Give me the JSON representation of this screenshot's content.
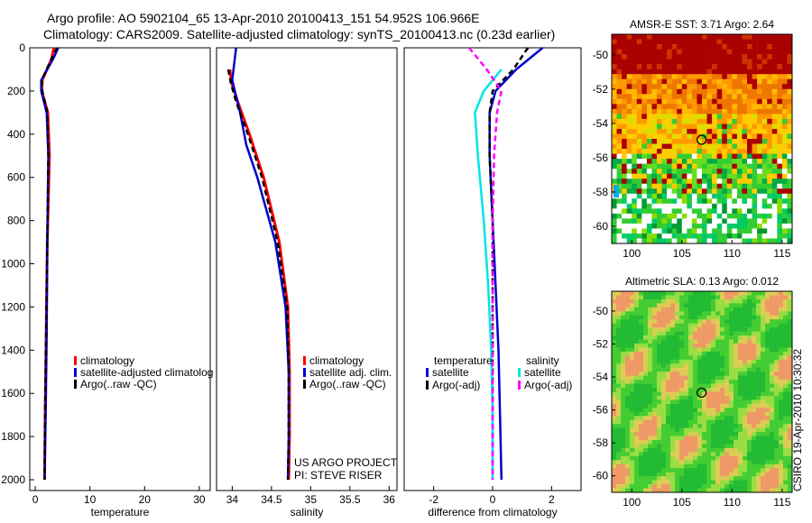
{
  "header": {
    "line1": "Argo profile: AO 5902104_65 13-Apr-2010 20100413_151 54.952S 106.966E",
    "line2": "Climatology: CARS2009. Satellite-adjusted climatology: synTS_20100413.nc (0.23d earlier)"
  },
  "side_note": "CSIRO 19-Apr-2010 10:30:32",
  "colors": {
    "climatology": "#ff0000",
    "satellite": "#0000cc",
    "argo": "#000000",
    "temp_satellite": "#00e5e5",
    "sal_argo": "#ff00ff"
  },
  "chart_data": [
    {
      "type": "line",
      "name": "temperature-profile",
      "xlabel": "temperature",
      "xlim": [
        -1,
        32
      ],
      "xticks": [
        "0",
        "10",
        "20",
        "30"
      ],
      "xtick_values": [
        0,
        10,
        20,
        30
      ],
      "ylim": [
        0,
        2050
      ],
      "yticks": [
        "0",
        "200",
        "400",
        "600",
        "800",
        "1000",
        "1200",
        "1400",
        "1600",
        "1800",
        "2000"
      ],
      "ytick_values": [
        0,
        200,
        400,
        600,
        800,
        1000,
        1200,
        1400,
        1600,
        1800,
        2000
      ],
      "legend": [
        "climatology",
        "satellite-adjusted climatolog",
        "Argo(..raw -QC)"
      ],
      "series": [
        {
          "key": "climatology",
          "x": [
            3.4,
            3.0,
            1.3,
            1.2,
            2.3,
            2.6,
            2.2,
            2.0,
            1.8,
            1.7
          ],
          "y": [
            0,
            50,
            150,
            200,
            300,
            500,
            900,
            1300,
            1700,
            2000
          ]
        },
        {
          "key": "satellite",
          "x": [
            4.2,
            3.3,
            1.1,
            1.1,
            2.1,
            2.4,
            2.2,
            2.1,
            1.9,
            1.7
          ],
          "y": [
            0,
            50,
            150,
            200,
            300,
            500,
            900,
            1300,
            1700,
            2000
          ]
        },
        {
          "key": "argo",
          "x": [
            4.0,
            3.0,
            1.2,
            1.3,
            2.2,
            2.4,
            2.2,
            2.0,
            1.8,
            1.7
          ],
          "y": [
            0,
            50,
            150,
            200,
            300,
            500,
            900,
            1300,
            1700,
            2000
          ]
        }
      ]
    },
    {
      "type": "line",
      "name": "salinity-profile",
      "xlabel": "salinity",
      "xlim": [
        33.8,
        36.1
      ],
      "xticks": [
        "34",
        "34.5",
        "35",
        "35.5",
        "36"
      ],
      "xtick_values": [
        34,
        34.5,
        35,
        35.5,
        36
      ],
      "ylim": [
        0,
        2050
      ],
      "legend": [
        "climatology",
        "satellite adj. clim.",
        "Argo(..raw -QC)"
      ],
      "annotation": [
        "US ARGO PROJECT",
        "PI: STEVE RISER"
      ],
      "series": [
        {
          "key": "climatology",
          "x": [
            33.97,
            33.99,
            34.07,
            34.22,
            34.4,
            34.6,
            34.71,
            34.73,
            34.73,
            34.72
          ],
          "y": [
            100,
            160,
            250,
            400,
            600,
            900,
            1200,
            1500,
            1800,
            2000
          ]
        },
        {
          "key": "satellite",
          "x": [
            34.05,
            34.0,
            34.1,
            34.18,
            34.32,
            34.55,
            34.68,
            34.72,
            34.72,
            34.71
          ],
          "y": [
            0,
            150,
            300,
            450,
            600,
            900,
            1200,
            1500,
            1800,
            2000
          ]
        },
        {
          "key": "argo",
          "x": [
            33.95,
            33.98,
            34.05,
            34.2,
            34.38,
            34.58,
            34.7,
            34.72,
            34.72,
            34.71
          ],
          "y": [
            100,
            160,
            250,
            400,
            600,
            900,
            1200,
            1500,
            1800,
            2000
          ]
        }
      ]
    },
    {
      "type": "line",
      "name": "difference-profile",
      "xlabel": "difference from climatology",
      "xlim": [
        -3,
        3
      ],
      "xticks": [
        "-2",
        "0",
        "2"
      ],
      "xtick_values": [
        -2,
        0,
        2
      ],
      "ylim": [
        0,
        2050
      ],
      "legend_headings": [
        "temperature",
        "salinity"
      ],
      "legend": [
        "satellite",
        "Argo(-adj)",
        "satellite",
        "Argo(-adj)"
      ],
      "series": [
        {
          "key": "satellite",
          "x": [
            1.7,
            0.8,
            0.1,
            -0.1,
            -0.1,
            0.0,
            0.1,
            0.2,
            0.25,
            0.3
          ],
          "y": [
            0,
            100,
            200,
            300,
            500,
            800,
            1100,
            1400,
            1700,
            2000
          ]
        },
        {
          "key": "argo",
          "x": [
            1.2,
            0.7,
            0.0,
            -0.1,
            -0.1,
            0.0,
            0.0,
            0.0,
            0.0,
            0.0
          ],
          "y": [
            0,
            100,
            200,
            300,
            500,
            800,
            1100,
            1400,
            1700,
            2000
          ]
        },
        {
          "key": "temp_satellite",
          "x": [
            0.3,
            -0.3,
            -0.6,
            -0.5,
            -0.3,
            -0.15,
            -0.05,
            0.0,
            0.0,
            0.0
          ],
          "y": [
            100,
            200,
            300,
            500,
            800,
            1100,
            1400,
            1700,
            1900,
            2000
          ]
        },
        {
          "key": "sal_argo",
          "x": [
            -0.8,
            -0.2,
            0.3,
            0.15,
            0.05,
            0.0,
            0.0,
            0.0,
            0.0,
            0.0
          ],
          "y": [
            0,
            100,
            200,
            300,
            500,
            800,
            1100,
            1400,
            1700,
            2000
          ]
        }
      ]
    },
    {
      "type": "heatmap",
      "name": "amsre-sst-map",
      "title": "AMSR-E SST: 3.71  Argo: 2.64",
      "xlim": [
        98,
        116
      ],
      "ylim": [
        -61,
        -48.8
      ],
      "xticks": [
        "100",
        "105",
        "110",
        "115"
      ],
      "xtick_values": [
        100,
        105,
        110,
        115
      ],
      "yticks": [
        "-50",
        "-52",
        "-54",
        "-56",
        "-58",
        "-60"
      ],
      "ytick_values": [
        -50,
        -52,
        -54,
        -56,
        -58,
        -60
      ],
      "marker": {
        "lon": 106.966,
        "lat": -54.952
      }
    },
    {
      "type": "heatmap",
      "name": "altimetric-sla-map",
      "title": "Altimetric SLA: 0.13  Argo: 0.012",
      "xlim": [
        98,
        116
      ],
      "ylim": [
        -61,
        -48.8
      ],
      "xticks": [
        "100",
        "105",
        "110",
        "115"
      ],
      "xtick_values": [
        100,
        105,
        110,
        115
      ],
      "yticks": [
        "-50",
        "-52",
        "-54",
        "-56",
        "-58",
        "-60"
      ],
      "ytick_values": [
        -50,
        -52,
        -54,
        -56,
        -58,
        -60
      ],
      "marker": {
        "lon": 106.966,
        "lat": -54.952
      }
    }
  ]
}
